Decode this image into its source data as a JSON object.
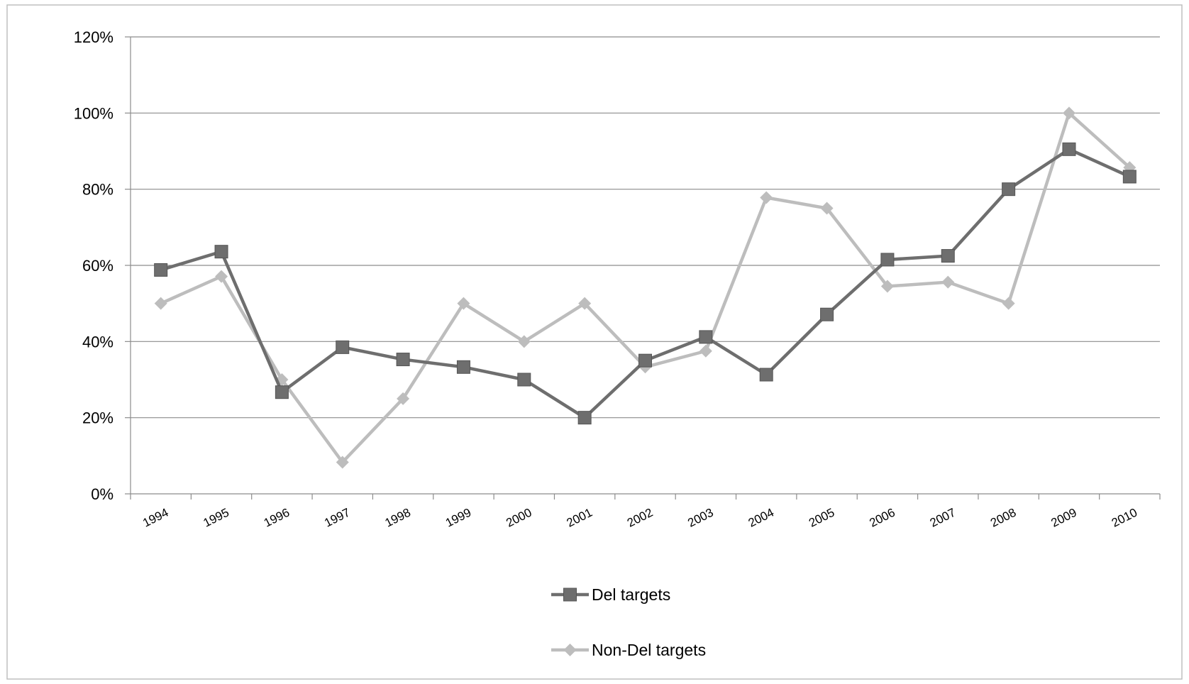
{
  "chart_data": {
    "type": "line",
    "title": "",
    "xlabel": "",
    "ylabel": "",
    "categories": [
      "1994",
      "1995",
      "1996",
      "1997",
      "1998",
      "1999",
      "2000",
      "2001",
      "2002",
      "2003",
      "2004",
      "2005",
      "2006",
      "2007",
      "2008",
      "2009",
      "2010"
    ],
    "ylim": [
      0,
      120
    ],
    "yticks": [
      "0%",
      "20%",
      "40%",
      "60%",
      "80%",
      "100%",
      "120%"
    ],
    "ytick_values": [
      0,
      20,
      40,
      60,
      80,
      100,
      120
    ],
    "grid": "horizontal",
    "legend_position": "bottom",
    "series": [
      {
        "name": "Del targets",
        "marker": "square",
        "color": "#6e6e6e",
        "values": [
          58.8,
          63.6,
          26.7,
          38.5,
          35.3,
          33.3,
          30.0,
          20.0,
          35.0,
          41.2,
          31.3,
          47.1,
          61.5,
          62.5,
          80.0,
          90.5,
          83.3
        ]
      },
      {
        "name": "Non-Del targets",
        "marker": "diamond",
        "color": "#bdbdbd",
        "values": [
          50.0,
          57.1,
          30.0,
          8.3,
          25.0,
          50.0,
          40.0,
          50.0,
          33.3,
          37.5,
          77.8,
          75.0,
          54.5,
          55.6,
          50.0,
          100.0,
          85.7
        ]
      }
    ]
  }
}
